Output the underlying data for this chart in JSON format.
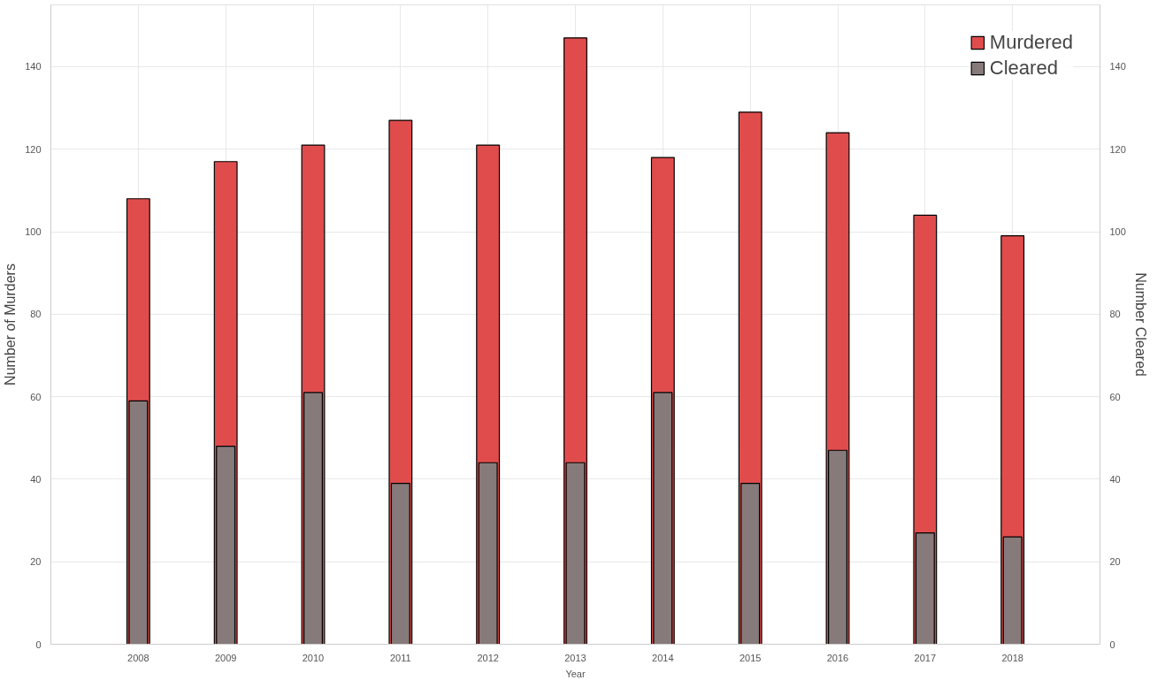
{
  "chart_data": {
    "type": "bar",
    "xlabel": "Year",
    "ylabel": "Number of Murders",
    "y2label": "Number Cleared",
    "x": [
      2008,
      2009,
      2010,
      2011,
      2012,
      2013,
      2014,
      2015,
      2016,
      2017,
      2018
    ],
    "xlim": [
      2007,
      2019
    ],
    "xticks": [
      {
        "value": 2007,
        "label": null
      },
      2008,
      2009,
      2010,
      2011,
      2012,
      2013,
      2014,
      2015,
      2016,
      2017,
      2018,
      {
        "value": 2019,
        "label": null
      }
    ],
    "ylim": [
      0,
      155
    ],
    "yticks": [
      0,
      20,
      40,
      60,
      80,
      100,
      120,
      140
    ],
    "y2lim": [
      0,
      155
    ],
    "y2ticks": [
      0,
      20,
      40,
      60,
      80,
      100,
      120,
      140
    ],
    "series": [
      {
        "name": "Murdered",
        "color": "#e04c4c",
        "values": [
          108,
          117,
          121,
          127,
          121,
          147,
          118,
          129,
          124,
          104,
          99
        ]
      },
      {
        "name": "Cleared",
        "color": "#877a7a",
        "values": [
          59,
          48,
          61,
          39,
          44,
          44,
          61,
          39,
          47,
          27,
          26
        ]
      }
    ],
    "grid": true,
    "legend": "top right"
  }
}
